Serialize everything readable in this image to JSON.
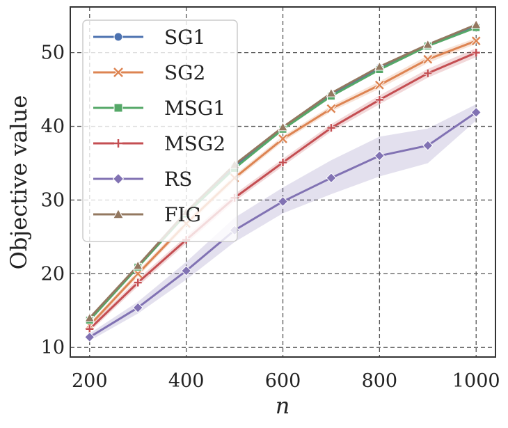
{
  "chart_data": {
    "type": "line",
    "title": "",
    "xlabel": "n",
    "ylabel": "Objective value",
    "x": [
      200,
      300,
      400,
      500,
      600,
      700,
      800,
      900,
      1000
    ],
    "xlim": [
      160,
      1040
    ],
    "ylim": [
      8.7,
      56.2
    ],
    "xticks": [
      200,
      400,
      600,
      800,
      1000
    ],
    "yticks": [
      10,
      20,
      30,
      40,
      50
    ],
    "grid": true,
    "legend_position": "top-left",
    "series": [
      {
        "name": "SG1",
        "color": "#4c72b0",
        "marker": "circle",
        "values": [
          13.8,
          21.0,
          28.3,
          34.6,
          39.8,
          44.3,
          48.0,
          51.0,
          53.6
        ]
      },
      {
        "name": "SG2",
        "color": "#dd8452",
        "marker": "x",
        "values": [
          13.0,
          20.0,
          26.8,
          33.0,
          38.3,
          42.4,
          45.6,
          49.1,
          51.6
        ],
        "band": [
          [
            12.7,
            13.3
          ],
          [
            19.6,
            20.4
          ],
          [
            26.4,
            27.2
          ],
          [
            32.6,
            33.4
          ],
          [
            37.9,
            38.7
          ],
          [
            42.0,
            42.8
          ],
          [
            45.1,
            46.1
          ],
          [
            48.6,
            49.6
          ],
          [
            51.2,
            52.0
          ]
        ]
      },
      {
        "name": "MSG1",
        "color": "#55a868",
        "marker": "square",
        "values": [
          13.7,
          20.9,
          28.1,
          34.3,
          39.6,
          44.1,
          47.7,
          50.9,
          53.4
        ]
      },
      {
        "name": "MSG2",
        "color": "#c44e52",
        "marker": "plus",
        "values": [
          12.5,
          18.8,
          24.6,
          30.3,
          35.1,
          39.8,
          43.6,
          47.2,
          50.0
        ],
        "band": [
          [
            12.1,
            12.9
          ],
          [
            18.3,
            19.3
          ],
          [
            24.1,
            25.1
          ],
          [
            29.8,
            30.8
          ],
          [
            34.6,
            35.6
          ],
          [
            39.3,
            40.3
          ],
          [
            43.0,
            44.2
          ],
          [
            46.6,
            47.8
          ],
          [
            49.4,
            50.6
          ]
        ]
      },
      {
        "name": "RS",
        "color": "#8172b3",
        "marker": "diamond",
        "values": [
          11.4,
          15.4,
          20.4,
          25.9,
          29.8,
          33.0,
          36.0,
          37.4,
          41.9
        ],
        "band": [
          [
            10.9,
            11.9
          ],
          [
            14.6,
            16.2
          ],
          [
            19.2,
            21.6
          ],
          [
            24.3,
            27.6
          ],
          [
            28.2,
            31.7
          ],
          [
            30.8,
            35.4
          ],
          [
            33.2,
            38.6
          ],
          [
            35.0,
            39.7
          ],
          [
            40.8,
            43.0
          ]
        ]
      },
      {
        "name": "FIG",
        "color": "#937860",
        "marker": "triangle",
        "values": [
          14.0,
          21.1,
          28.4,
          34.8,
          39.9,
          44.5,
          48.1,
          51.1,
          53.8
        ]
      }
    ]
  }
}
